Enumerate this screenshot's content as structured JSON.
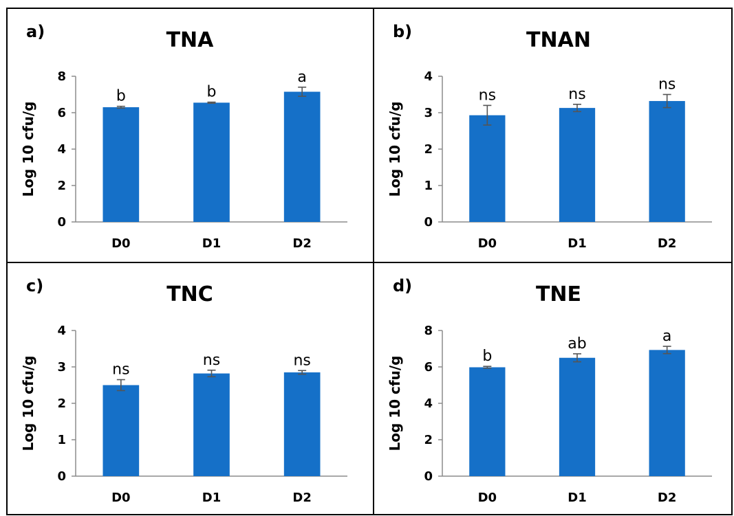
{
  "chart_data": [
    {
      "type": "bar",
      "panel_label": "a)",
      "title": "TNA",
      "ylabel": "Log 10 cfu/g",
      "categories": [
        "D0",
        "D1",
        "D2"
      ],
      "values": [
        6.3,
        6.55,
        7.15
      ],
      "errors": [
        0.05,
        0.03,
        0.25
      ],
      "significance": [
        "b",
        "b",
        "a"
      ],
      "ylim": [
        0,
        8
      ],
      "yticks": [
        0,
        2,
        4,
        6,
        8
      ],
      "color": "#1570c8",
      "grid": false
    },
    {
      "type": "bar",
      "panel_label": "b)",
      "title": "TNAN",
      "ylabel": "Log 10 cfu/g",
      "categories": [
        "D0",
        "D1",
        "D2"
      ],
      "values": [
        2.93,
        3.13,
        3.32
      ],
      "errors": [
        0.27,
        0.1,
        0.18
      ],
      "significance": [
        "ns",
        "ns",
        "ns"
      ],
      "ylim": [
        0,
        4
      ],
      "yticks": [
        0,
        1,
        2,
        3,
        4
      ],
      "color": "#1570c8",
      "grid": false
    },
    {
      "type": "bar",
      "panel_label": "c)",
      "title": "TNC",
      "ylabel": "Log 10 cfu/g",
      "categories": [
        "D0",
        "D1",
        "D2"
      ],
      "values": [
        2.5,
        2.82,
        2.85
      ],
      "errors": [
        0.15,
        0.09,
        0.05
      ],
      "significance": [
        "ns",
        "ns",
        "ns"
      ],
      "ylim": [
        0,
        4
      ],
      "yticks": [
        0,
        1,
        2,
        3,
        4
      ],
      "color": "#1570c8",
      "grid": false
    },
    {
      "type": "bar",
      "panel_label": "d)",
      "title": "TNE",
      "ylabel": "Log 10 cfu/g",
      "categories": [
        "D0",
        "D1",
        "D2"
      ],
      "values": [
        5.98,
        6.5,
        6.93
      ],
      "errors": [
        0.05,
        0.22,
        0.2
      ],
      "significance": [
        "b",
        "ab",
        "a"
      ],
      "ylim": [
        0,
        8
      ],
      "yticks": [
        0,
        2,
        4,
        6,
        8
      ],
      "color": "#1570c8",
      "grid": false
    }
  ]
}
